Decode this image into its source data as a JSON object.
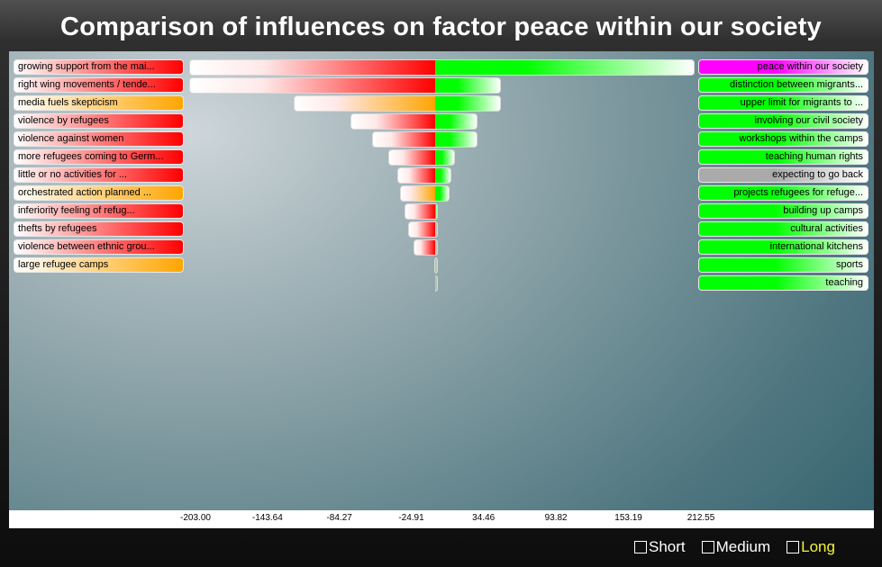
{
  "title": "Comparison of influences on factor peace within our society",
  "legend_options": [
    {
      "label": "Short",
      "active": false
    },
    {
      "label": "Medium",
      "active": false
    },
    {
      "label": "Long",
      "active": true
    }
  ],
  "colors": {
    "negative": "#ff0000",
    "positive": "#00ff00",
    "media": "#ffa500",
    "focus": "#ff00ff",
    "neutral": "#aaaaaa"
  },
  "chart_data": {
    "type": "bar",
    "orientation": "diverging",
    "title": "Comparison of influences on factor peace within our society",
    "x_ticks": [
      "-203.00",
      "-143.64",
      "-84.27",
      "-24.91",
      "34.46",
      "93.82",
      "153.19",
      "212.55"
    ],
    "xlim": [
      -203.0,
      212.55
    ],
    "negative_series": [
      {
        "label": "growing support from the mai...",
        "color": "red",
        "value": -203.0
      },
      {
        "label": "right wing movements / tende...",
        "color": "red",
        "value": -203.0
      },
      {
        "label": "media fuels skepticism",
        "color": "orange",
        "value": -117.0
      },
      {
        "label": "violence by refugees",
        "color": "red",
        "value": -70.0
      },
      {
        "label": "violence against women",
        "color": "red",
        "value": -52.0
      },
      {
        "label": "more refugees coming to Germ...",
        "color": "red",
        "value": -39.0
      },
      {
        "label": "little or no activities for ...",
        "color": "red",
        "value": -31.0
      },
      {
        "label": "orchestrated action planned ...",
        "color": "orange",
        "value": -29.0
      },
      {
        "label": "inferiority feeling of refug...",
        "color": "red",
        "value": -25.0
      },
      {
        "label": "thefts by refugees",
        "color": "red",
        "value": -22.0
      },
      {
        "label": "violence between ethnic grou...",
        "color": "red",
        "value": -18.0
      },
      {
        "label": "large refugee camps",
        "color": "orange",
        "value": 0
      }
    ],
    "positive_series": [
      {
        "label": "peace within our society",
        "color": "magenta",
        "value": 212.55
      },
      {
        "label": "distinction between migrants...",
        "color": "green",
        "value": 54.0
      },
      {
        "label": "upper limit for migrants to ...",
        "color": "green",
        "value": 54.0
      },
      {
        "label": "involving our civil society",
        "color": "green",
        "value": 35.0
      },
      {
        "label": "workshops within the camps",
        "color": "green",
        "value": 35.0
      },
      {
        "label": "teaching human rights",
        "color": "green",
        "value": 16.0
      },
      {
        "label": "expecting to go back",
        "color": "gray",
        "value": 13.0
      },
      {
        "label": "projects refugees for refuge...",
        "color": "green",
        "value": 12.0
      },
      {
        "label": "building up camps",
        "color": "green",
        "value": 2.5
      },
      {
        "label": "cultural activities",
        "color": "green",
        "value": 2.0
      },
      {
        "label": "international kitchens",
        "color": "green",
        "value": 1.5
      },
      {
        "label": "sports",
        "color": "green",
        "value": 1.5
      },
      {
        "label": "teaching",
        "color": "green",
        "value": 1.5
      }
    ]
  }
}
